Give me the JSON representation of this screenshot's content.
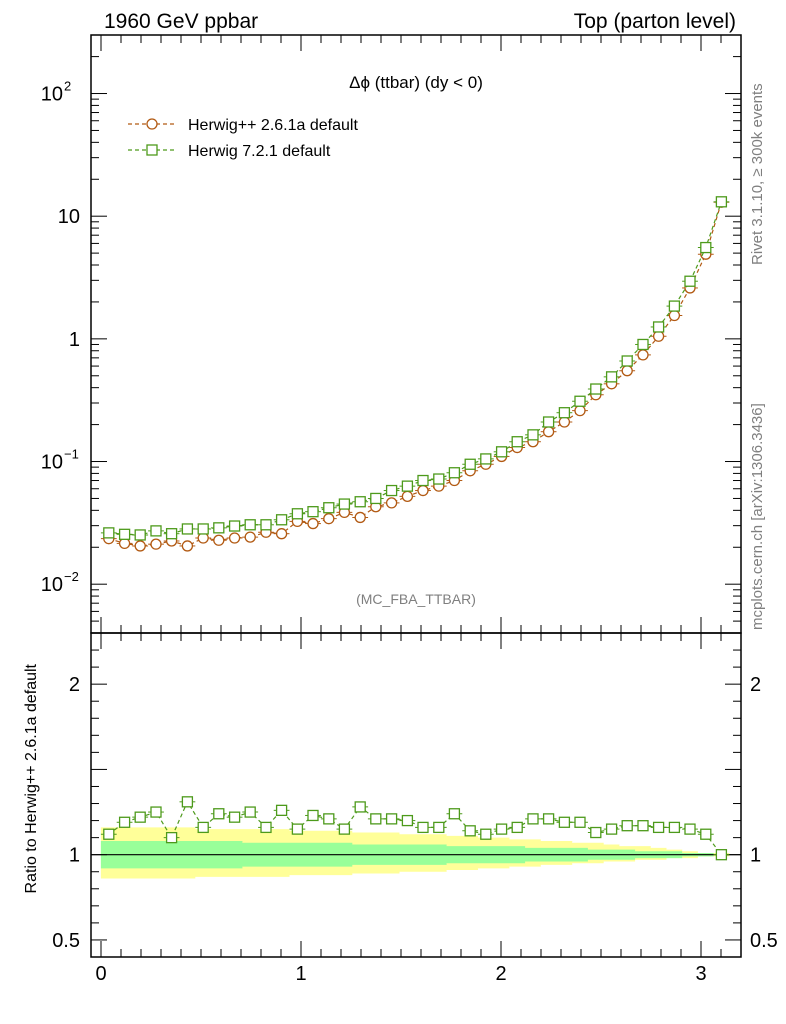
{
  "header": {
    "left": "1960 GeV ppbar",
    "right": "Top (parton level)"
  },
  "side": {
    "rivet": "Rivet 3.1.10, ≥ 300k events",
    "mcplots": "mcplots.cern.ch [arXiv:1306.3436]"
  },
  "chart_data": [
    {
      "type": "line",
      "panel": "main",
      "title": "Δϕ (ttbar) (dy < 0)",
      "analysis_tag": "(MC_FBA_TTBAR)",
      "yscale": "log",
      "xlim": [
        -0.05,
        3.2
      ],
      "ylim": [
        0.004,
        300
      ],
      "x": [
        0.039,
        0.118,
        0.196,
        0.275,
        0.353,
        0.432,
        0.511,
        0.589,
        0.668,
        0.746,
        0.825,
        0.903,
        0.982,
        1.06,
        1.139,
        1.217,
        1.296,
        1.374,
        1.453,
        1.532,
        1.61,
        1.689,
        1.767,
        1.846,
        1.924,
        2.003,
        2.081,
        2.16,
        2.238,
        2.317,
        2.395,
        2.474,
        2.553,
        2.631,
        2.71,
        2.788,
        2.867,
        2.945,
        3.024,
        3.102
      ],
      "legend": {
        "placement": "top-left"
      },
      "series": [
        {
          "name": "Herwig++ 2.6.1a default",
          "color": "#b25a13",
          "marker": "circle",
          "values": [
            0.0235,
            0.0215,
            0.0205,
            0.0212,
            0.0225,
            0.0205,
            0.0238,
            0.0228,
            0.0238,
            0.0242,
            0.0265,
            0.0258,
            0.0325,
            0.0312,
            0.0342,
            0.0385,
            0.035,
            0.0428,
            0.046,
            0.052,
            0.058,
            0.063,
            0.07,
            0.084,
            0.095,
            0.11,
            0.13,
            0.145,
            0.175,
            0.21,
            0.26,
            0.35,
            0.43,
            0.55,
            0.74,
            1.05,
            1.55,
            2.6,
            4.9,
            13.0
          ]
        },
        {
          "name": "Herwig 7.2.1 default",
          "color": "#4d9a1b",
          "marker": "square",
          "values": [
            0.0262,
            0.0255,
            0.0252,
            0.0272,
            0.0258,
            0.0282,
            0.0282,
            0.0288,
            0.0298,
            0.0305,
            0.0305,
            0.0335,
            0.0375,
            0.039,
            0.042,
            0.045,
            0.047,
            0.05,
            0.058,
            0.063,
            0.07,
            0.072,
            0.081,
            0.095,
            0.105,
            0.12,
            0.145,
            0.165,
            0.21,
            0.25,
            0.31,
            0.39,
            0.49,
            0.66,
            0.9,
            1.25,
            1.85,
            2.95,
            5.55,
            13.1
          ]
        }
      ]
    },
    {
      "type": "line",
      "panel": "ratio",
      "ylabel": "Ratio to Herwig++ 2.6.1a default",
      "xlim": [
        -0.05,
        3.2
      ],
      "ylim": [
        0.4,
        2.3
      ],
      "xticks": [
        "0",
        "1",
        "2",
        "3"
      ],
      "yticks": [
        "0.5",
        "1",
        "2"
      ],
      "reference": {
        "name": "Herwig++ 2.6.1a default",
        "value": 1.0,
        "color": "#000000"
      },
      "bands": [
        {
          "name": "outer",
          "color": "#ffff99",
          "upper": [
            1.16,
            1.16,
            1.16,
            1.16,
            1.16,
            1.16,
            1.15,
            1.15,
            1.15,
            1.15,
            1.15,
            1.15,
            1.14,
            1.14,
            1.14,
            1.14,
            1.13,
            1.13,
            1.13,
            1.12,
            1.12,
            1.12,
            1.11,
            1.11,
            1.1,
            1.1,
            1.09,
            1.09,
            1.08,
            1.08,
            1.07,
            1.07,
            1.06,
            1.05,
            1.05,
            1.04,
            1.03,
            1.02,
            1.01,
            1.01
          ],
          "lower": [
            0.86,
            0.86,
            0.86,
            0.86,
            0.86,
            0.86,
            0.87,
            0.87,
            0.87,
            0.87,
            0.87,
            0.87,
            0.88,
            0.88,
            0.88,
            0.88,
            0.89,
            0.89,
            0.89,
            0.9,
            0.9,
            0.9,
            0.91,
            0.91,
            0.92,
            0.92,
            0.93,
            0.93,
            0.94,
            0.94,
            0.95,
            0.95,
            0.96,
            0.96,
            0.97,
            0.97,
            0.98,
            0.98,
            0.99,
            0.99
          ]
        },
        {
          "name": "inner",
          "color": "#99ff99",
          "upper": [
            1.08,
            1.08,
            1.08,
            1.08,
            1.08,
            1.08,
            1.08,
            1.08,
            1.08,
            1.07,
            1.07,
            1.07,
            1.07,
            1.07,
            1.07,
            1.07,
            1.06,
            1.06,
            1.06,
            1.06,
            1.06,
            1.06,
            1.05,
            1.05,
            1.05,
            1.05,
            1.05,
            1.04,
            1.04,
            1.04,
            1.04,
            1.03,
            1.03,
            1.03,
            1.02,
            1.02,
            1.02,
            1.01,
            1.01,
            1.0
          ],
          "lower": [
            0.92,
            0.92,
            0.92,
            0.92,
            0.92,
            0.92,
            0.92,
            0.92,
            0.92,
            0.93,
            0.93,
            0.93,
            0.93,
            0.93,
            0.93,
            0.93,
            0.94,
            0.94,
            0.94,
            0.94,
            0.94,
            0.94,
            0.95,
            0.95,
            0.95,
            0.95,
            0.95,
            0.96,
            0.96,
            0.96,
            0.96,
            0.97,
            0.97,
            0.97,
            0.98,
            0.98,
            0.98,
            0.99,
            0.99,
            1.0
          ]
        }
      ],
      "series": [
        {
          "name": "Herwig 7.2.1 default",
          "color": "#4d9a1b",
          "marker": "square",
          "values": [
            1.12,
            1.19,
            1.22,
            1.25,
            1.1,
            1.31,
            1.16,
            1.24,
            1.22,
            1.25,
            1.16,
            1.26,
            1.15,
            1.23,
            1.21,
            1.15,
            1.28,
            1.21,
            1.21,
            1.2,
            1.16,
            1.16,
            1.24,
            1.14,
            1.12,
            1.15,
            1.16,
            1.21,
            1.21,
            1.19,
            1.19,
            1.13,
            1.15,
            1.17,
            1.17,
            1.16,
            1.16,
            1.15,
            1.12,
            1.0
          ]
        }
      ]
    }
  ]
}
